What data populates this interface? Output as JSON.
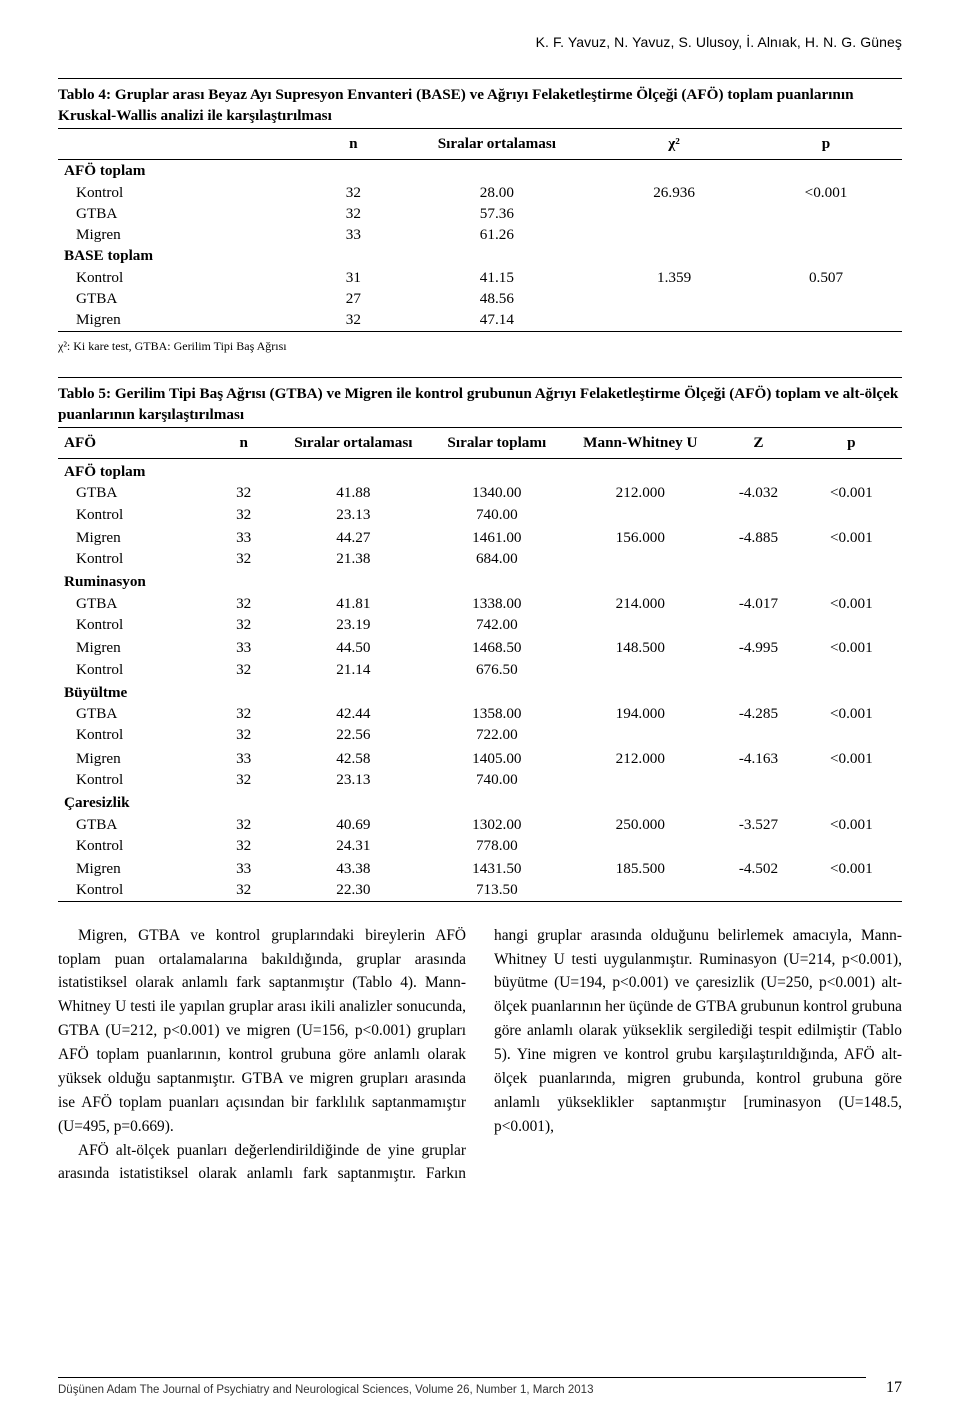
{
  "running_head": "K. F. Yavuz, N. Yavuz, S. Ulusoy, İ. Alnıak, H. N. G. Güneş",
  "table4": {
    "title": "Tablo 4: Gruplar arası Beyaz Ayı Supresyon Envanteri (BASE) ve Ağrıyı Felaketleştirme Ölçeği (AFÖ) toplam puanlarının Kruskal-Wallis analizi ile karşılaştırılması",
    "headers": [
      "",
      "n",
      "Sıralar ortalaması",
      "χ²",
      "p"
    ],
    "sections": [
      {
        "label": "AFÖ toplam",
        "rows": [
          {
            "g": "Kontrol",
            "n": "32",
            "mean": "28.00",
            "chi": "26.936",
            "p": "<0.001"
          },
          {
            "g": "GTBA",
            "n": "32",
            "mean": "57.36",
            "chi": "",
            "p": ""
          },
          {
            "g": "Migren",
            "n": "33",
            "mean": "61.26",
            "chi": "",
            "p": ""
          }
        ]
      },
      {
        "label": "BASE toplam",
        "rows": [
          {
            "g": "Kontrol",
            "n": "31",
            "mean": "41.15",
            "chi": "1.359",
            "p": "0.507"
          },
          {
            "g": "GTBA",
            "n": "27",
            "mean": "48.56",
            "chi": "",
            "p": ""
          },
          {
            "g": "Migren",
            "n": "32",
            "mean": "47.14",
            "chi": "",
            "p": ""
          }
        ]
      }
    ],
    "note": "χ²: Ki kare test, GTBA: Gerilim Tipi Baş Ağrısı"
  },
  "table5": {
    "title": "Tablo 5: Gerilim Tipi Baş Ağrısı (GTBA) ve Migren ile kontrol grubunun Ağrıyı Felaketleştirme Ölçeği (AFÖ) toplam ve alt-ölçek puanlarının karşılaştırılması",
    "headers": [
      "AFÖ",
      "n",
      "Sıralar ortalaması",
      "Sıralar toplamı",
      "Mann-Whitney U",
      "Z",
      "p"
    ],
    "sections": [
      {
        "label": "AFÖ toplam",
        "pairs": [
          {
            "a": {
              "g": "GTBA",
              "n": "32",
              "mean": "41.88",
              "sum": "1340.00",
              "u": "212.000",
              "z": "-4.032",
              "p": "<0.001"
            },
            "b": {
              "g": "Kontrol",
              "n": "32",
              "mean": "23.13",
              "sum": "740.00"
            }
          },
          {
            "a": {
              "g": "Migren",
              "n": "33",
              "mean": "44.27",
              "sum": "1461.00",
              "u": "156.000",
              "z": "-4.885",
              "p": "<0.001"
            },
            "b": {
              "g": "Kontrol",
              "n": "32",
              "mean": "21.38",
              "sum": "684.00"
            }
          }
        ]
      },
      {
        "label": "Ruminasyon",
        "pairs": [
          {
            "a": {
              "g": "GTBA",
              "n": "32",
              "mean": "41.81",
              "sum": "1338.00",
              "u": "214.000",
              "z": "-4.017",
              "p": "<0.001"
            },
            "b": {
              "g": "Kontrol",
              "n": "32",
              "mean": "23.19",
              "sum": "742.00"
            }
          },
          {
            "a": {
              "g": "Migren",
              "n": "33",
              "mean": "44.50",
              "sum": "1468.50",
              "u": "148.500",
              "z": "-4.995",
              "p": "<0.001"
            },
            "b": {
              "g": "Kontrol",
              "n": "32",
              "mean": "21.14",
              "sum": "676.50"
            }
          }
        ]
      },
      {
        "label": "Büyültme",
        "pairs": [
          {
            "a": {
              "g": "GTBA",
              "n": "32",
              "mean": "42.44",
              "sum": "1358.00",
              "u": "194.000",
              "z": "-4.285",
              "p": "<0.001"
            },
            "b": {
              "g": "Kontrol",
              "n": "32",
              "mean": "22.56",
              "sum": "722.00"
            }
          },
          {
            "a": {
              "g": "Migren",
              "n": "33",
              "mean": "42.58",
              "sum": "1405.00",
              "u": "212.000",
              "z": "-4.163",
              "p": "<0.001"
            },
            "b": {
              "g": "Kontrol",
              "n": "32",
              "mean": "23.13",
              "sum": "740.00"
            }
          }
        ]
      },
      {
        "label": "Çaresizlik",
        "pairs": [
          {
            "a": {
              "g": "GTBA",
              "n": "32",
              "mean": "40.69",
              "sum": "1302.00",
              "u": "250.000",
              "z": "-3.527",
              "p": "<0.001"
            },
            "b": {
              "g": "Kontrol",
              "n": "32",
              "mean": "24.31",
              "sum": "778.00"
            }
          },
          {
            "a": {
              "g": "Migren",
              "n": "33",
              "mean": "43.38",
              "sum": "1431.50",
              "u": "185.500",
              "z": "-4.502",
              "p": "<0.001"
            },
            "b": {
              "g": "Kontrol",
              "n": "32",
              "mean": "22.30",
              "sum": "713.50"
            }
          }
        ]
      }
    ]
  },
  "body": {
    "p1": "Migren, GTBA ve kontrol gruplarındaki bireylerin AFÖ toplam puan ortalamalarına bakıldığında, gruplar arasında istatistiksel olarak anlamlı fark saptanmıştır (Tablo 4). Mann-Whitney U testi ile yapılan gruplar arası ikili analizler sonucunda, GTBA (U=212, p<0.001) ve migren (U=156, p<0.001) grupları AFÖ toplam puanlarının, kontrol grubuna göre anlamlı olarak yüksek olduğu saptanmıştır. GTBA ve migren grupları arasında ise AFÖ toplam puanları açısından bir farklılık saptanmamıştır (U=495, p=0.669).",
    "p2": "AFÖ alt-ölçek puanları değerlendirildiğinde de yine gruplar arasında istatistiksel olarak anlamlı fark saptanmıştır. Farkın hangi gruplar arasında olduğunu belirlemek amacıyla, Mann-Whitney U testi uygulanmıştır. Ruminasyon (U=214, p<0.001), büyütme (U=194, p<0.001) ve çaresizlik (U=250, p<0.001) alt-ölçek puanlarının her üçünde de GTBA grubunun kontrol grubuna göre anlamlı olarak yükseklik sergilediği tespit edilmiştir (Tablo 5). Yine migren ve kontrol grubu karşılaştırıldığında, AFÖ alt-ölçek puanlarında, migren grubunda, kontrol grubuna göre anlamlı yükseklikler saptanmıştır [ruminasyon (U=148.5, p<0.001),"
  },
  "footer": {
    "journal": "Düşünen Adam The Journal of Psychiatry and Neurological Sciences, Volume 26, Number 1, March 2013",
    "page": "17"
  }
}
